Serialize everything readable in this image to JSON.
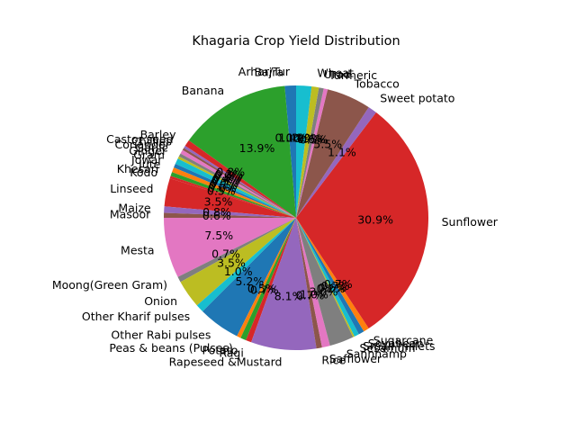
{
  "chart_data": {
    "type": "pie",
    "title": "Khagaria Crop Yield Distribution",
    "start_angle_deg": 90,
    "direction": "counterclockwise",
    "slices": [
      {
        "label": "Arhar/Tur",
        "value": 1.4,
        "pct_label": "1.4%",
        "color": "#1f77b4"
      },
      {
        "label": "Bajra",
        "value": 0.0,
        "pct_label": "0.0%",
        "color": "#ff7f0e"
      },
      {
        "label": "Banana",
        "value": 13.9,
        "pct_label": "13.9%",
        "color": "#2ca02c"
      },
      {
        "label": "Barley",
        "value": 0.8,
        "pct_label": "0.8%",
        "color": "#d62728"
      },
      {
        "label": "Castor seed",
        "value": 0.3,
        "pct_label": "0.3%",
        "color": "#9467bd"
      },
      {
        "label": "Chillies",
        "value": 0.3,
        "pct_label": "0.3%",
        "color": "#8c564b"
      },
      {
        "label": "Coriander",
        "value": 0.5,
        "pct_label": "0.5%",
        "color": "#e377c2"
      },
      {
        "label": "Garlic",
        "value": 0.4,
        "pct_label": "0.4%",
        "color": "#7f7f7f"
      },
      {
        "label": "Ginger",
        "value": 0.3,
        "pct_label": "0.3%",
        "color": "#bcbd22"
      },
      {
        "label": "Gram",
        "value": 0.7,
        "pct_label": "0.7%",
        "color": "#17becf"
      },
      {
        "label": "Jowar",
        "value": 0.5,
        "pct_label": "0.5%",
        "color": "#1f77b4"
      },
      {
        "label": "Jute",
        "value": 0.6,
        "pct_label": "0.6%",
        "color": "#ff7f0e"
      },
      {
        "label": "Khesari",
        "value": 0.5,
        "pct_label": "0.5%",
        "color": "#2ca02c"
      },
      {
        "label": "Kodo",
        "value": 0.3,
        "pct_label": "",
        "color": "#d62728"
      },
      {
        "label": "Linseed",
        "value": 3.5,
        "pct_label": "3.5%",
        "color": "#d62728"
      },
      {
        "label": "Maize",
        "value": 0.8,
        "pct_label": "0.8%",
        "color": "#9467bd"
      },
      {
        "label": "Masoor",
        "value": 0.6,
        "pct_label": "0.6%",
        "color": "#8c564b"
      },
      {
        "label": "Mesta",
        "value": 7.5,
        "pct_label": "7.5%",
        "color": "#e377c2"
      },
      {
        "label": "Moong(Green Gram)",
        "value": 0.7,
        "pct_label": "0.7%",
        "color": "#7f7f7f"
      },
      {
        "label": "Onion",
        "value": 3.5,
        "pct_label": "3.5%",
        "color": "#bcbd22"
      },
      {
        "label": "Other Kharif pulses",
        "value": 1.0,
        "pct_label": "1.0%",
        "color": "#17becf"
      },
      {
        "label": "Other Rabi pulses",
        "value": 5.2,
        "pct_label": "5.2%",
        "color": "#1f77b4"
      },
      {
        "label": "Peas & beans (Pulses)",
        "value": 0.5,
        "pct_label": "0.5%",
        "color": "#ff7f0e"
      },
      {
        "label": "Potato",
        "value": 0.7,
        "pct_label": "0.7%",
        "color": "#2ca02c"
      },
      {
        "label": "Ragi",
        "value": 0.7,
        "pct_label": "",
        "color": "#d62728"
      },
      {
        "label": "Rapeseed &Mustard",
        "value": 8.1,
        "pct_label": "8.1%",
        "color": "#9467bd"
      },
      {
        "label": "Rice",
        "value": 0.7,
        "pct_label": "0.7%",
        "color": "#8c564b"
      },
      {
        "label": "Safflower",
        "value": 1.0,
        "pct_label": "1.0%",
        "color": "#e377c2"
      },
      {
        "label": "Sannhamp",
        "value": 3.0,
        "pct_label": "3.0%",
        "color": "#7f7f7f"
      },
      {
        "label": "Sesamum",
        "value": 0.2,
        "pct_label": "0.2%",
        "color": "#bcbd22"
      },
      {
        "label": "Small millets",
        "value": 0.6,
        "pct_label": "0.6%",
        "color": "#17becf"
      },
      {
        "label": "Soyabean",
        "value": 0.7,
        "pct_label": "0.7%",
        "color": "#1f77b4"
      },
      {
        "label": "Sugarcane",
        "value": 0.7,
        "pct_label": "0.7%",
        "color": "#ff7f0e"
      },
      {
        "label": "Sunflower",
        "value": 30.9,
        "pct_label": "30.9%",
        "color": "#d62728"
      },
      {
        "label": "Sweet potato",
        "value": 1.1,
        "pct_label": "1.1%",
        "color": "#9467bd"
      },
      {
        "label": "Tobacco",
        "value": 5.5,
        "pct_label": "5.5%",
        "color": "#8c564b"
      },
      {
        "label": "Turmeric",
        "value": 0.5,
        "pct_label": "0.5%",
        "color": "#e377c2"
      },
      {
        "label": "Urad",
        "value": 0.6,
        "pct_label": "0.6%",
        "color": "#7f7f7f"
      },
      {
        "label": "Wheat",
        "value": 0.9,
        "pct_label": "0.9%",
        "color": "#bcbd22"
      },
      {
        "label": "",
        "value": 1.9,
        "pct_label": "1.9%",
        "color": "#17becf"
      }
    ]
  }
}
